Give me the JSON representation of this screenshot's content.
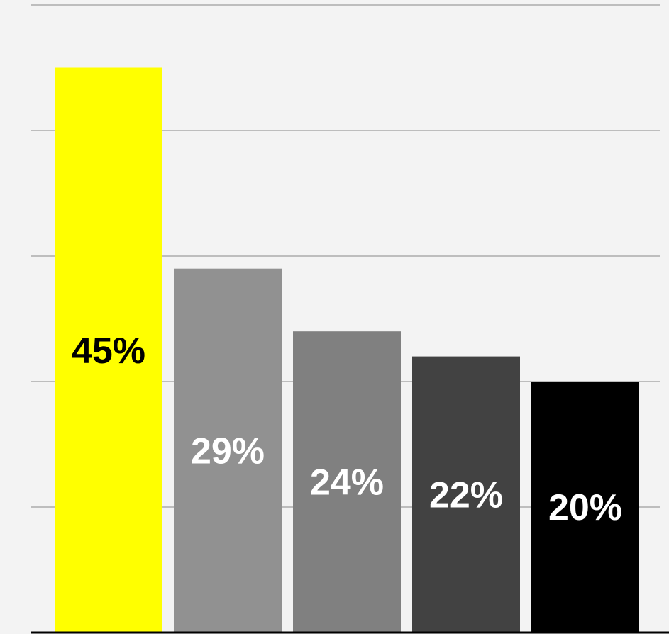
{
  "chart_data": {
    "type": "bar",
    "categories": [
      "",
      "",
      "",
      "",
      ""
    ],
    "values": [
      45,
      29,
      24,
      22,
      20
    ],
    "value_labels": [
      "45%",
      "29%",
      "24%",
      "22%",
      "20%"
    ],
    "bar_colors": [
      "#ffff00",
      "#919191",
      "#808080",
      "#424242",
      "#000000"
    ],
    "label_colors": [
      "#000000",
      "#ffffff",
      "#ffffff",
      "#ffffff",
      "#ffffff"
    ],
    "ylim": [
      0,
      50
    ],
    "gridlines": [
      10,
      20,
      30,
      40,
      50
    ],
    "grid": true,
    "title": "",
    "xlabel": "",
    "ylabel": ""
  }
}
